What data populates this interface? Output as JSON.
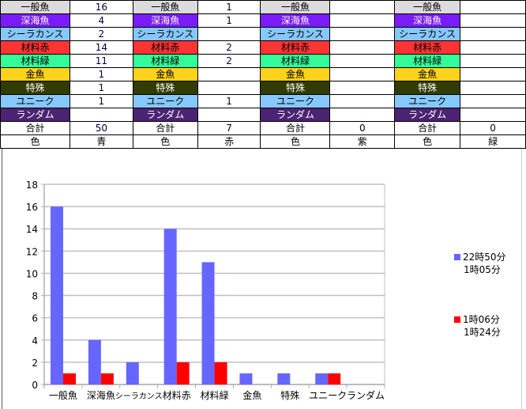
{
  "table": {
    "categories": [
      {
        "label": "一般魚",
        "bg": "#dcdcdc",
        "fg": "#000000"
      },
      {
        "label": "深海魚",
        "bg": "#7a1cf8",
        "fg": "#ffffff"
      },
      {
        "label": "シーラカンス",
        "bg": "#86c8fc",
        "fg": "#000000"
      },
      {
        "label": "材料赤",
        "bg": "#fd3434",
        "fg": "#000000"
      },
      {
        "label": "材料緑",
        "bg": "#33fc98",
        "fg": "#000000"
      },
      {
        "label": "金魚",
        "bg": "#fdd21c",
        "fg": "#000000"
      },
      {
        "label": "特殊",
        "bg": "#313b04",
        "fg": "#ffffff"
      },
      {
        "label": "ユニーク",
        "bg": "#86c8fc",
        "fg": "#000000"
      },
      {
        "label": "ランダム",
        "bg": "#4c2372",
        "fg": "#ffffff"
      }
    ],
    "total_label": "合計",
    "color_label": "色",
    "groups": [
      {
        "values": [
          "16",
          "4",
          "2",
          "14",
          "11",
          "1",
          "1",
          "1",
          ""
        ],
        "total": "50",
        "color": "青"
      },
      {
        "values": [
          "1",
          "1",
          "",
          "2",
          "2",
          "",
          "",
          "1",
          ""
        ],
        "total": "7",
        "color": "赤"
      },
      {
        "values": [
          "",
          "",
          "",
          "",
          "",
          "",
          "",
          "",
          ""
        ],
        "total": "0",
        "color": "紫"
      },
      {
        "values": [
          "",
          "",
          "",
          "",
          "",
          "",
          "",
          "",
          ""
        ],
        "total": "0",
        "color": "緑"
      }
    ]
  },
  "chart_data": {
    "type": "bar",
    "categories": [
      "一般魚",
      "深海魚",
      "シーラカンス",
      "材料赤",
      "材料緑",
      "金魚",
      "特殊",
      "ユニーク",
      "ランダム"
    ],
    "series": [
      {
        "name": "22時50分\n1時05分",
        "legend_line1": "22時50分",
        "legend_line2": "1時05分",
        "color": "#6666ff",
        "values": [
          16,
          4,
          2,
          14,
          11,
          1,
          1,
          1,
          0
        ]
      },
      {
        "name": "1時06分\n1時24分",
        "legend_line1": "1時06分",
        "legend_line2": "1時24分",
        "color": "#ff0000",
        "values": [
          1,
          1,
          0,
          2,
          2,
          0,
          0,
          1,
          0
        ]
      }
    ],
    "ylim": [
      0,
      18
    ],
    "yticks": [
      0,
      2,
      4,
      6,
      8,
      10,
      12,
      14,
      16,
      18
    ],
    "grid": true,
    "legend": "right"
  }
}
